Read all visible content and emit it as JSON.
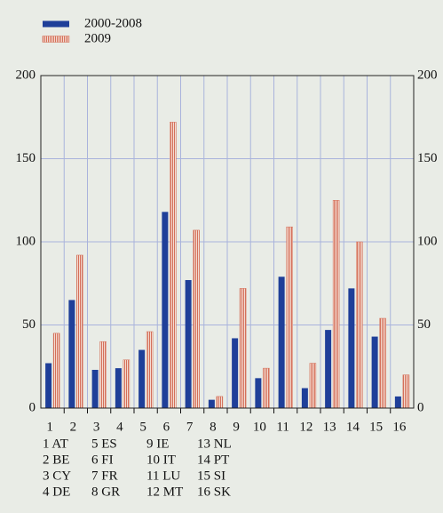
{
  "chart_data": {
    "type": "bar",
    "categories": [
      "1",
      "2",
      "3",
      "4",
      "5",
      "6",
      "7",
      "8",
      "9",
      "10",
      "11",
      "12",
      "13",
      "14",
      "15",
      "16"
    ],
    "series": [
      {
        "name": "2000-2008",
        "color": "#1f3f99",
        "values": [
          27,
          65,
          23,
          24,
          35,
          118,
          77,
          5,
          42,
          18,
          79,
          12,
          47,
          72,
          43,
          7
        ]
      },
      {
        "name": "2009",
        "color": "#d4705a",
        "values": [
          45,
          92,
          40,
          29,
          46,
          172,
          107,
          7,
          72,
          24,
          109,
          27,
          125,
          100,
          54,
          20
        ]
      }
    ],
    "ylim": [
      0,
      200
    ],
    "yticks": [
      0,
      50,
      100,
      150,
      200
    ],
    "grid": true,
    "notes": [
      "1 AT",
      "2 BE",
      "3 CY",
      "4 DE",
      "5 ES",
      "6 FI",
      "7 FR",
      "8 GR",
      "9 IE",
      "10 IT",
      "11 LU",
      "12 MT",
      "13 NL",
      "14 PT",
      "15 SI",
      "16 SK"
    ]
  }
}
